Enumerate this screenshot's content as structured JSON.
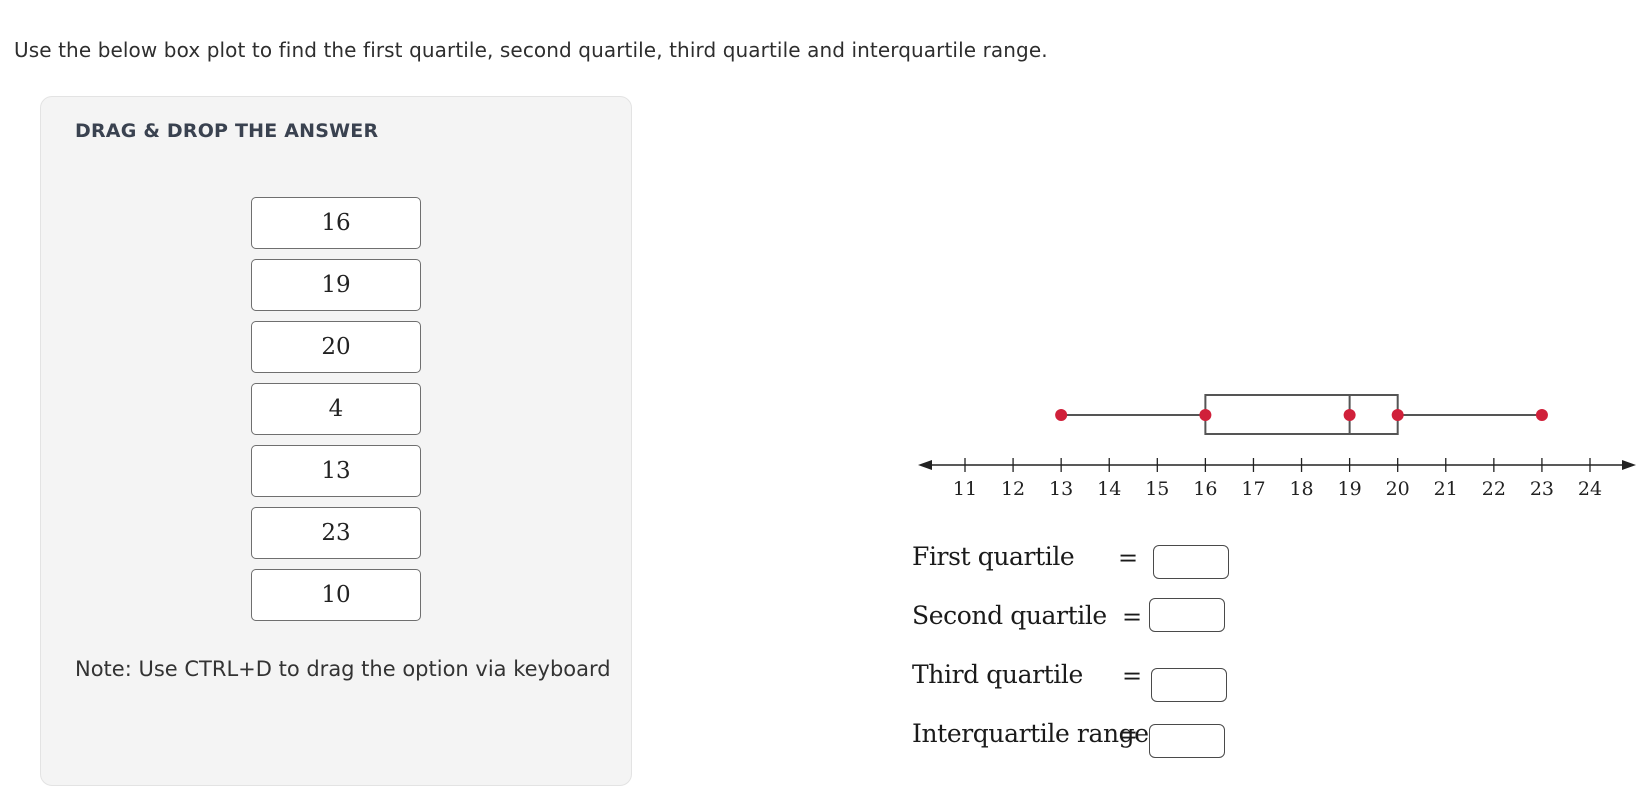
{
  "question": "Use the below box plot to find the first quartile, second quartile, third quartile and interquartile range.",
  "drag_panel": {
    "title": "DRAG & DROP THE ANSWER",
    "options": [
      "16",
      "19",
      "20",
      "4",
      "13",
      "23",
      "10"
    ],
    "note": "Note: Use CTRL+D to drag the option via keyboard"
  },
  "chart_data": {
    "type": "boxplot",
    "x_ticks": [
      11,
      12,
      13,
      14,
      15,
      16,
      17,
      18,
      19,
      20,
      21,
      22,
      23,
      24
    ],
    "xlim": [
      11,
      24
    ],
    "min": 13,
    "q1": 16,
    "median": 19,
    "q3": 20,
    "max": 23,
    "whisker_color": "#555555",
    "point_color": "#d0203a"
  },
  "answers": [
    {
      "label": "First quartile",
      "eq": "="
    },
    {
      "label": "Second quartile",
      "eq": "="
    },
    {
      "label": "Third quartile",
      "eq": "="
    },
    {
      "label": "Interquartile range",
      "eq": "="
    }
  ]
}
